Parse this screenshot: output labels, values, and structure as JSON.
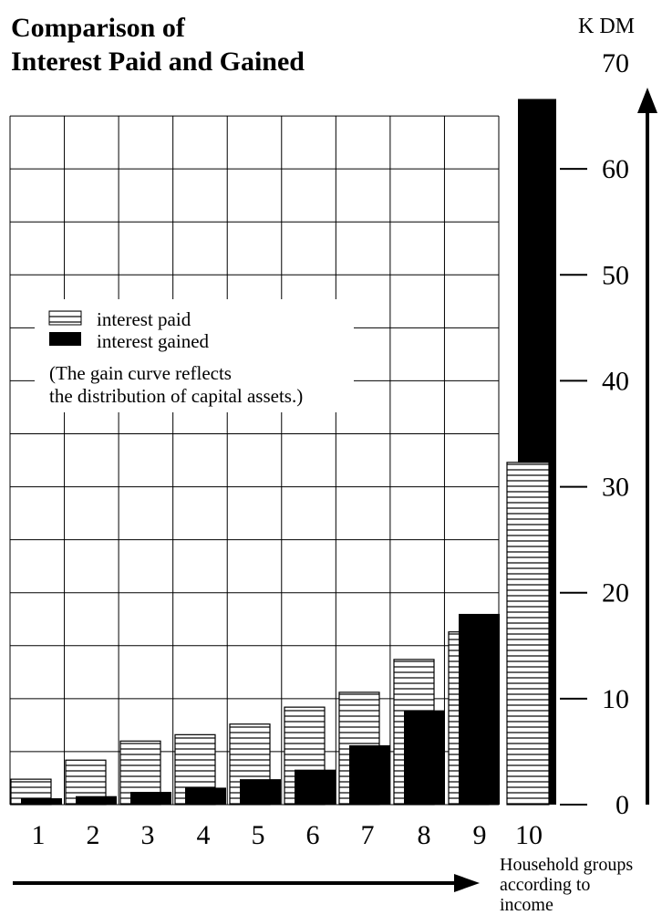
{
  "chart_data": {
    "type": "bar",
    "title_line1": "Comparison of",
    "title_line2": "Interest Paid and Gained",
    "unit_label": "K DM",
    "ylim": [
      0,
      70
    ],
    "yticks": [
      0,
      10,
      20,
      30,
      40,
      50,
      60,
      70
    ],
    "grid": true,
    "legend_placement": "middle-left",
    "categories": [
      "1",
      "2",
      "3",
      "4",
      "5",
      "6",
      "7",
      "8",
      "9",
      "10"
    ],
    "series": [
      {
        "name": "interest paid",
        "pattern": "horizontal-stripes",
        "values": [
          2.4,
          4.2,
          6.0,
          6.6,
          7.6,
          9.2,
          10.6,
          13.7,
          16.3,
          32.3
        ]
      },
      {
        "name": "interest gained",
        "color": "#000000",
        "values": [
          0.6,
          0.8,
          1.2,
          1.6,
          2.4,
          3.3,
          5.6,
          8.9,
          18.0,
          66.6
        ]
      }
    ],
    "legend_note_line1": "(The gain curve reflects",
    "legend_note_line2": "the distribution of capital assets.)",
    "xlabel_lines": [
      "Household groups",
      "according to",
      "income"
    ]
  }
}
